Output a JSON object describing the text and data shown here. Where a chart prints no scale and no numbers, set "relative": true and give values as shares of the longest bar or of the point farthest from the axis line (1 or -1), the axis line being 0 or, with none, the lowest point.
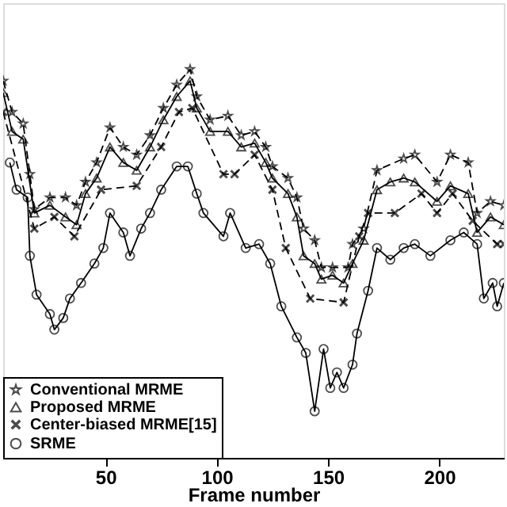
{
  "chart_data": {
    "type": "line",
    "relative": true,
    "xlabel": "Frame number",
    "xlim": [
      4,
      229
    ],
    "xticks": [
      50,
      100,
      150,
      200
    ],
    "tick_labels": "x",
    "grid": false,
    "legend": "bottom left",
    "series": [
      {
        "name": "Conventional MRME",
        "color": "#000000",
        "marker": "star",
        "line_style": "dashed",
        "x": [
          4,
          8,
          13,
          16,
          18,
          25,
          32,
          37,
          41,
          46,
          52,
          58,
          64,
          70,
          76,
          82,
          88,
          91,
          97,
          105,
          111,
          117,
          122,
          125,
          132,
          136,
          139,
          144,
          147,
          152,
          159,
          161,
          166,
          172,
          184,
          189,
          199,
          205,
          213,
          217,
          223,
          229
        ],
        "values": [
          0.97,
          0.89,
          0.86,
          0.73,
          0.64,
          0.67,
          0.67,
          0.65,
          0.71,
          0.76,
          0.85,
          0.8,
          0.78,
          0.83,
          0.9,
          0.96,
          1.0,
          0.93,
          0.87,
          0.88,
          0.83,
          0.84,
          0.8,
          0.75,
          0.72,
          0.67,
          0.59,
          0.56,
          0.49,
          0.49,
          0.49,
          0.55,
          0.59,
          0.74,
          0.77,
          0.78,
          0.71,
          0.78,
          0.76,
          0.63,
          0.66,
          0.65
        ]
      },
      {
        "name": "Proposed MRME",
        "color": "#000000",
        "marker": "triangle",
        "line_style": "solid",
        "x": [
          4,
          8,
          13,
          18,
          25,
          32,
          37,
          41,
          46,
          52,
          58,
          64,
          70,
          76,
          82,
          88,
          91,
          97,
          105,
          111,
          117,
          122,
          125,
          132,
          136,
          139,
          144,
          147,
          152,
          157,
          161,
          166,
          172,
          178,
          184,
          189,
          199,
          205,
          213,
          217,
          223,
          229
        ],
        "values": [
          0.94,
          0.84,
          0.82,
          0.63,
          0.65,
          0.62,
          0.6,
          0.68,
          0.72,
          0.8,
          0.76,
          0.74,
          0.8,
          0.87,
          0.93,
          0.97,
          0.9,
          0.84,
          0.84,
          0.8,
          0.81,
          0.76,
          0.72,
          0.68,
          0.62,
          0.52,
          0.5,
          0.46,
          0.47,
          0.45,
          0.5,
          0.56,
          0.69,
          0.71,
          0.72,
          0.71,
          0.66,
          0.7,
          0.68,
          0.58,
          0.62,
          0.6
        ]
      },
      {
        "name": "Center-biased MRME[15]",
        "color": "#000000",
        "marker": "cross",
        "line_style": "dashed",
        "x": [
          4,
          18,
          27,
          36,
          48,
          64,
          75,
          83,
          89,
          103,
          108,
          117,
          125,
          131,
          142,
          157,
          164,
          168,
          180,
          192,
          199,
          206,
          215,
          226,
          229
        ],
        "values": [
          0.89,
          0.59,
          0.62,
          0.57,
          0.69,
          0.7,
          0.8,
          0.89,
          0.9,
          0.73,
          0.73,
          0.78,
          0.69,
          0.54,
          0.41,
          0.4,
          0.57,
          0.63,
          0.63,
          0.68,
          0.63,
          0.68,
          0.61,
          0.55,
          0.55
        ]
      },
      {
        "name": "SRME",
        "color": "#000000",
        "marker": "circle",
        "line_style": "solid",
        "x": [
          7,
          10,
          15,
          16,
          19,
          25,
          27,
          31,
          34,
          39,
          45,
          49,
          52,
          58,
          61,
          66,
          70,
          75,
          82,
          87,
          91,
          94,
          103,
          106,
          113,
          119,
          124,
          129,
          136,
          140,
          144,
          148,
          151,
          154,
          157,
          161,
          163,
          168,
          172,
          178,
          184,
          189,
          196,
          205,
          211,
          217,
          220,
          224,
          226,
          229
        ],
        "values": [
          0.76,
          0.69,
          0.67,
          0.52,
          0.42,
          0.37,
          0.33,
          0.36,
          0.41,
          0.45,
          0.5,
          0.54,
          0.63,
          0.58,
          0.52,
          0.59,
          0.63,
          0.69,
          0.75,
          0.75,
          0.68,
          0.63,
          0.57,
          0.63,
          0.54,
          0.55,
          0.5,
          0.39,
          0.31,
          0.27,
          0.12,
          0.28,
          0.18,
          0.22,
          0.18,
          0.24,
          0.32,
          0.43,
          0.54,
          0.51,
          0.54,
          0.55,
          0.52,
          0.56,
          0.58,
          0.55,
          0.41,
          0.45,
          0.39,
          0.45
        ]
      }
    ]
  }
}
